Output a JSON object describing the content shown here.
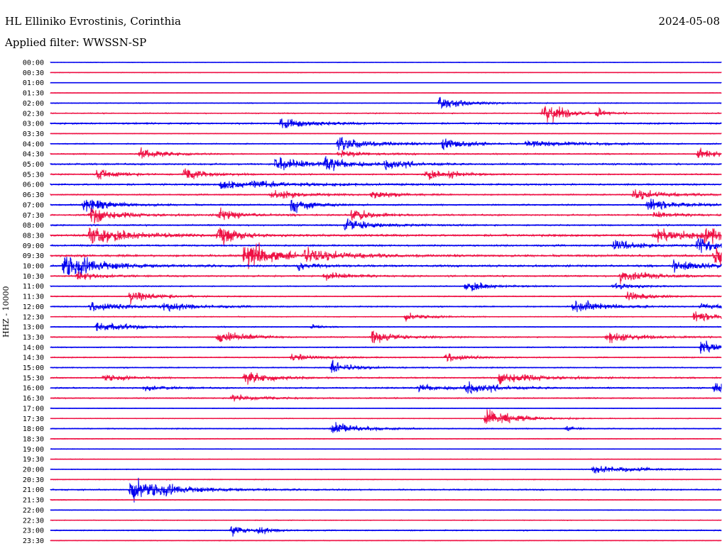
{
  "header": {
    "station": "HL Elliniko Evrostinis, Corinthia",
    "date": "2024-05-08",
    "filter": "Applied filter: WWSSN-SP"
  },
  "colors": {
    "even_row": "#0000ee",
    "odd_row": "#ee1144",
    "background": "#ffffff"
  },
  "chart_data": {
    "type": "line",
    "title": "HL Elliniko Evrostinis, Corinthia",
    "ylabel": "HHZ - 10000",
    "xlabel": "",
    "grid": false,
    "rows": [
      "00:00",
      "00:30",
      "01:00",
      "01:30",
      "02:00",
      "02:30",
      "03:00",
      "03:30",
      "04:00",
      "04:30",
      "05:00",
      "05:30",
      "06:00",
      "06:30",
      "07:00",
      "07:30",
      "08:00",
      "08:30",
      "09:00",
      "09:30",
      "10:00",
      "10:30",
      "11:00",
      "11:30",
      "12:00",
      "12:30",
      "13:00",
      "13:30",
      "14:00",
      "14:30",
      "15:00",
      "15:30",
      "16:00",
      "16:30",
      "17:00",
      "17:30",
      "18:00",
      "18:30",
      "19:00",
      "19:30",
      "20:00",
      "20:30",
      "21:00",
      "21:30",
      "22:00",
      "22:30",
      "23:00",
      "23:30"
    ],
    "noise_level": [
      0.4,
      0.5,
      0.3,
      0.4,
      0.6,
      0.8,
      1.2,
      0.5,
      0.8,
      0.9,
      1.3,
      1.0,
      1.3,
      1.0,
      1.1,
      1.2,
      1.1,
      1.6,
      1.3,
      1.6,
      1.5,
      1.2,
      0.8,
      0.8,
      0.9,
      0.7,
      0.7,
      0.8,
      0.8,
      0.8,
      0.8,
      1.0,
      1.1,
      0.9,
      0.5,
      0.6,
      0.8,
      0.6,
      0.5,
      0.5,
      0.6,
      0.6,
      1.0,
      0.6,
      0.5,
      0.6,
      0.8,
      0.5
    ],
    "events": [
      {
        "row": 4,
        "pos": 0.58,
        "amp": 12,
        "dur": 0.04
      },
      {
        "row": 5,
        "pos": 0.735,
        "amp": 25,
        "dur": 0.03
      },
      {
        "row": 5,
        "pos": 0.815,
        "amp": 8,
        "dur": 0.01
      },
      {
        "row": 6,
        "pos": 0.345,
        "amp": 12,
        "dur": 0.04
      },
      {
        "row": 8,
        "pos": 0.43,
        "amp": 13,
        "dur": 0.05
      },
      {
        "row": 8,
        "pos": 0.585,
        "amp": 15,
        "dur": 0.03
      },
      {
        "row": 8,
        "pos": 0.71,
        "amp": 6,
        "dur": 0.08
      },
      {
        "row": 9,
        "pos": 0.135,
        "amp": 12,
        "dur": 0.03
      },
      {
        "row": 9,
        "pos": 0.43,
        "amp": 6,
        "dur": 0.04
      },
      {
        "row": 9,
        "pos": 0.965,
        "amp": 12,
        "dur": 0.03
      },
      {
        "row": 10,
        "pos": 0.335,
        "amp": 14,
        "dur": 0.04
      },
      {
        "row": 10,
        "pos": 0.41,
        "amp": 14,
        "dur": 0.03
      },
      {
        "row": 10,
        "pos": 0.5,
        "amp": 13,
        "dur": 0.03
      },
      {
        "row": 11,
        "pos": 0.07,
        "amp": 10,
        "dur": 0.03
      },
      {
        "row": 11,
        "pos": 0.2,
        "amp": 14,
        "dur": 0.03
      },
      {
        "row": 11,
        "pos": 0.56,
        "amp": 13,
        "dur": 0.02
      },
      {
        "row": 11,
        "pos": 0.595,
        "amp": 8,
        "dur": 0.02
      },
      {
        "row": 12,
        "pos": 0.255,
        "amp": 12,
        "dur": 0.03
      },
      {
        "row": 12,
        "pos": 0.3,
        "amp": 6,
        "dur": 0.08
      },
      {
        "row": 13,
        "pos": 0.33,
        "amp": 10,
        "dur": 0.04
      },
      {
        "row": 13,
        "pos": 0.48,
        "amp": 8,
        "dur": 0.03
      },
      {
        "row": 13,
        "pos": 0.87,
        "amp": 12,
        "dur": 0.04
      },
      {
        "row": 14,
        "pos": 0.05,
        "amp": 14,
        "dur": 0.04
      },
      {
        "row": 14,
        "pos": 0.36,
        "amp": 15,
        "dur": 0.03
      },
      {
        "row": 14,
        "pos": 0.89,
        "amp": 12,
        "dur": 0.04
      },
      {
        "row": 15,
        "pos": 0.06,
        "amp": 15,
        "dur": 0.04
      },
      {
        "row": 15,
        "pos": 0.25,
        "amp": 12,
        "dur": 0.03
      },
      {
        "row": 15,
        "pos": 0.45,
        "amp": 14,
        "dur": 0.03
      },
      {
        "row": 15,
        "pos": 0.9,
        "amp": 6,
        "dur": 0.03
      },
      {
        "row": 16,
        "pos": 0.44,
        "amp": 14,
        "dur": 0.04
      },
      {
        "row": 17,
        "pos": 0.06,
        "amp": 18,
        "dur": 0.06
      },
      {
        "row": 17,
        "pos": 0.25,
        "amp": 20,
        "dur": 0.03
      },
      {
        "row": 17,
        "pos": 0.9,
        "amp": 14,
        "dur": 0.05
      },
      {
        "row": 17,
        "pos": 0.975,
        "amp": 16,
        "dur": 0.03
      },
      {
        "row": 18,
        "pos": 0.84,
        "amp": 14,
        "dur": 0.03
      },
      {
        "row": 18,
        "pos": 0.965,
        "amp": 16,
        "dur": 0.03
      },
      {
        "row": 19,
        "pos": 0.29,
        "amp": 30,
        "dur": 0.04
      },
      {
        "row": 19,
        "pos": 0.38,
        "amp": 12,
        "dur": 0.06
      },
      {
        "row": 19,
        "pos": 0.99,
        "amp": 22,
        "dur": 0.04
      },
      {
        "row": 20,
        "pos": 0.02,
        "amp": 26,
        "dur": 0.05
      },
      {
        "row": 20,
        "pos": 0.37,
        "amp": 10,
        "dur": 0.02
      },
      {
        "row": 20,
        "pos": 0.93,
        "amp": 12,
        "dur": 0.04
      },
      {
        "row": 21,
        "pos": 0.04,
        "amp": 10,
        "dur": 0.03
      },
      {
        "row": 21,
        "pos": 0.41,
        "amp": 8,
        "dur": 0.03
      },
      {
        "row": 21,
        "pos": 0.85,
        "amp": 14,
        "dur": 0.04
      },
      {
        "row": 22,
        "pos": 0.62,
        "amp": 12,
        "dur": 0.03
      },
      {
        "row": 22,
        "pos": 0.84,
        "amp": 8,
        "dur": 0.03
      },
      {
        "row": 23,
        "pos": 0.12,
        "amp": 16,
        "dur": 0.03
      },
      {
        "row": 23,
        "pos": 0.86,
        "amp": 12,
        "dur": 0.03
      },
      {
        "row": 24,
        "pos": 0.06,
        "amp": 10,
        "dur": 0.05
      },
      {
        "row": 24,
        "pos": 0.17,
        "amp": 10,
        "dur": 0.04
      },
      {
        "row": 24,
        "pos": 0.78,
        "amp": 14,
        "dur": 0.04
      },
      {
        "row": 24,
        "pos": 0.97,
        "amp": 6,
        "dur": 0.03
      },
      {
        "row": 25,
        "pos": 0.53,
        "amp": 8,
        "dur": 0.03
      },
      {
        "row": 25,
        "pos": 0.96,
        "amp": 10,
        "dur": 0.04
      },
      {
        "row": 26,
        "pos": 0.07,
        "amp": 12,
        "dur": 0.04
      },
      {
        "row": 26,
        "pos": 0.39,
        "amp": 6,
        "dur": 0.01
      },
      {
        "row": 27,
        "pos": 0.25,
        "amp": 12,
        "dur": 0.04
      },
      {
        "row": 27,
        "pos": 0.48,
        "amp": 12,
        "dur": 0.04
      },
      {
        "row": 27,
        "pos": 0.83,
        "amp": 14,
        "dur": 0.04
      },
      {
        "row": 28,
        "pos": 0.97,
        "amp": 14,
        "dur": 0.03
      },
      {
        "row": 29,
        "pos": 0.36,
        "amp": 8,
        "dur": 0.04
      },
      {
        "row": 29,
        "pos": 0.59,
        "amp": 10,
        "dur": 0.03
      },
      {
        "row": 30,
        "pos": 0.42,
        "amp": 12,
        "dur": 0.03
      },
      {
        "row": 31,
        "pos": 0.08,
        "amp": 8,
        "dur": 0.03
      },
      {
        "row": 31,
        "pos": 0.29,
        "amp": 12,
        "dur": 0.04
      },
      {
        "row": 31,
        "pos": 0.67,
        "amp": 12,
        "dur": 0.05
      },
      {
        "row": 32,
        "pos": 0.14,
        "amp": 6,
        "dur": 0.03
      },
      {
        "row": 32,
        "pos": 0.55,
        "amp": 8,
        "dur": 0.03
      },
      {
        "row": 32,
        "pos": 0.62,
        "amp": 14,
        "dur": 0.04
      },
      {
        "row": 32,
        "pos": 0.99,
        "amp": 12,
        "dur": 0.03
      },
      {
        "row": 33,
        "pos": 0.27,
        "amp": 8,
        "dur": 0.04
      },
      {
        "row": 35,
        "pos": 0.65,
        "amp": 20,
        "dur": 0.04
      },
      {
        "row": 36,
        "pos": 0.42,
        "amp": 12,
        "dur": 0.04
      },
      {
        "row": 36,
        "pos": 0.77,
        "amp": 6,
        "dur": 0.01
      },
      {
        "row": 40,
        "pos": 0.81,
        "amp": 10,
        "dur": 0.05
      },
      {
        "row": 42,
        "pos": 0.12,
        "amp": 24,
        "dur": 0.06
      },
      {
        "row": 46,
        "pos": 0.27,
        "amp": 12,
        "dur": 0.02
      },
      {
        "row": 46,
        "pos": 0.31,
        "amp": 8,
        "dur": 0.02
      }
    ]
  }
}
